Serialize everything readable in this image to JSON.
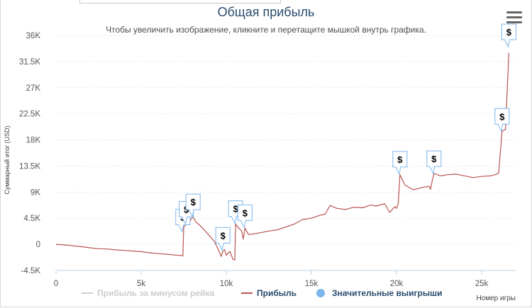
{
  "header": {
    "title": "Общая прибыль",
    "subtitle": "Чтобы увеличить изображение, кликните и перетащите мышкой внутрь графика."
  },
  "menu": {
    "icon": "hamburger-menu-icon"
  },
  "chart_data": {
    "type": "line",
    "title": "Общая прибыль",
    "xlabel": "Номер игры",
    "ylabel": "Суммарный итог (USD)",
    "xlim": [
      0,
      27000
    ],
    "ylim": [
      -4500,
      36000
    ],
    "x_ticks": [
      0,
      5000,
      10000,
      15000,
      20000,
      25000
    ],
    "x_tick_labels": [
      "0",
      "5k",
      "10k",
      "15k",
      "20k",
      "25k"
    ],
    "y_ticks": [
      -4500,
      0,
      4500,
      9000,
      13500,
      18000,
      22500,
      27000,
      31500,
      36000
    ],
    "y_tick_labels": [
      "-4.5K",
      "0",
      "4.5K",
      "9K",
      "13.5K",
      "18K",
      "22.5K",
      "27K",
      "31.5K",
      "36K"
    ],
    "grid": true,
    "legend": {
      "position": "bottom",
      "items": [
        {
          "name": "Прибыль за минусом рейка",
          "color": "#cccccc",
          "symbol": "line",
          "visible": false
        },
        {
          "name": "Прибыль",
          "color": "#b85450",
          "symbol": "line",
          "visible": true
        },
        {
          "name": "Значительные выигрыши",
          "color": "#7cb5ec",
          "symbol": "circle",
          "visible": true
        }
      ]
    },
    "series": [
      {
        "name": "Прибыль",
        "color": "#b85450",
        "points": [
          [
            0,
            0
          ],
          [
            500,
            -100
          ],
          [
            1000,
            -250
          ],
          [
            1500,
            -400
          ],
          [
            2000,
            -600
          ],
          [
            2500,
            -750
          ],
          [
            3000,
            -800
          ],
          [
            3500,
            -950
          ],
          [
            4000,
            -1050
          ],
          [
            4500,
            -1150
          ],
          [
            5000,
            -1250
          ],
          [
            5500,
            -1450
          ],
          [
            6000,
            -1600
          ],
          [
            6500,
            -1700
          ],
          [
            7000,
            -1850
          ],
          [
            7300,
            -1900
          ],
          [
            7450,
            -2000
          ],
          [
            7500,
            3000
          ],
          [
            7700,
            3600
          ],
          [
            7900,
            4200
          ],
          [
            8050,
            4800
          ],
          [
            8200,
            3900
          ],
          [
            8400,
            3400
          ],
          [
            8700,
            2500
          ],
          [
            9000,
            1500
          ],
          [
            9300,
            500
          ],
          [
            9500,
            -700
          ],
          [
            9700,
            -2100
          ],
          [
            9800,
            -1200
          ],
          [
            9900,
            -900
          ],
          [
            10000,
            -1900
          ],
          [
            10200,
            -1200
          ],
          [
            10400,
            -2600
          ],
          [
            10500,
            -2700
          ],
          [
            10550,
            3500
          ],
          [
            10700,
            2900
          ],
          [
            10900,
            2300
          ],
          [
            11000,
            900
          ],
          [
            11100,
            2800
          ],
          [
            11300,
            1700
          ],
          [
            11600,
            1800
          ],
          [
            12000,
            2000
          ],
          [
            12500,
            2300
          ],
          [
            13000,
            2500
          ],
          [
            13500,
            3000
          ],
          [
            14000,
            3500
          ],
          [
            14500,
            4300
          ],
          [
            15000,
            4500
          ],
          [
            15500,
            5000
          ],
          [
            15800,
            5200
          ],
          [
            16100,
            6700
          ],
          [
            16500,
            6200
          ],
          [
            17000,
            6000
          ],
          [
            17500,
            6400
          ],
          [
            18000,
            6300
          ],
          [
            18500,
            6800
          ],
          [
            18800,
            6600
          ],
          [
            19300,
            7000
          ],
          [
            19600,
            5500
          ],
          [
            19900,
            6500
          ],
          [
            20000,
            6200
          ],
          [
            20100,
            7000
          ],
          [
            20200,
            12000
          ],
          [
            20500,
            10200
          ],
          [
            21000,
            9400
          ],
          [
            21500,
            9800
          ],
          [
            21900,
            10000
          ],
          [
            22000,
            9500
          ],
          [
            22100,
            11000
          ],
          [
            22200,
            12200
          ],
          [
            22600,
            11800
          ],
          [
            23000,
            12000
          ],
          [
            23500,
            12100
          ],
          [
            24000,
            11800
          ],
          [
            24500,
            11500
          ],
          [
            25000,
            11700
          ],
          [
            25500,
            11800
          ],
          [
            25800,
            12000
          ],
          [
            26000,
            12300
          ],
          [
            26200,
            19500
          ],
          [
            26400,
            19800
          ],
          [
            26600,
            33000
          ]
        ]
      }
    ],
    "big_wins": [
      {
        "x": 7450,
        "y": 2150,
        "label": "$"
      },
      {
        "x": 7650,
        "y": 3500,
        "label": "$"
      },
      {
        "x": 8050,
        "y": 4750,
        "label": "$"
      },
      {
        "x": 9800,
        "y": -1000,
        "label": "$"
      },
      {
        "x": 10550,
        "y": 3600,
        "label": "$"
      },
      {
        "x": 11100,
        "y": 2900,
        "label": "$"
      },
      {
        "x": 20200,
        "y": 12100,
        "label": "$"
      },
      {
        "x": 22200,
        "y": 12200,
        "label": "$"
      },
      {
        "x": 26200,
        "y": 19500,
        "label": "$"
      },
      {
        "x": 26600,
        "y": 36000,
        "label": "$"
      }
    ]
  }
}
